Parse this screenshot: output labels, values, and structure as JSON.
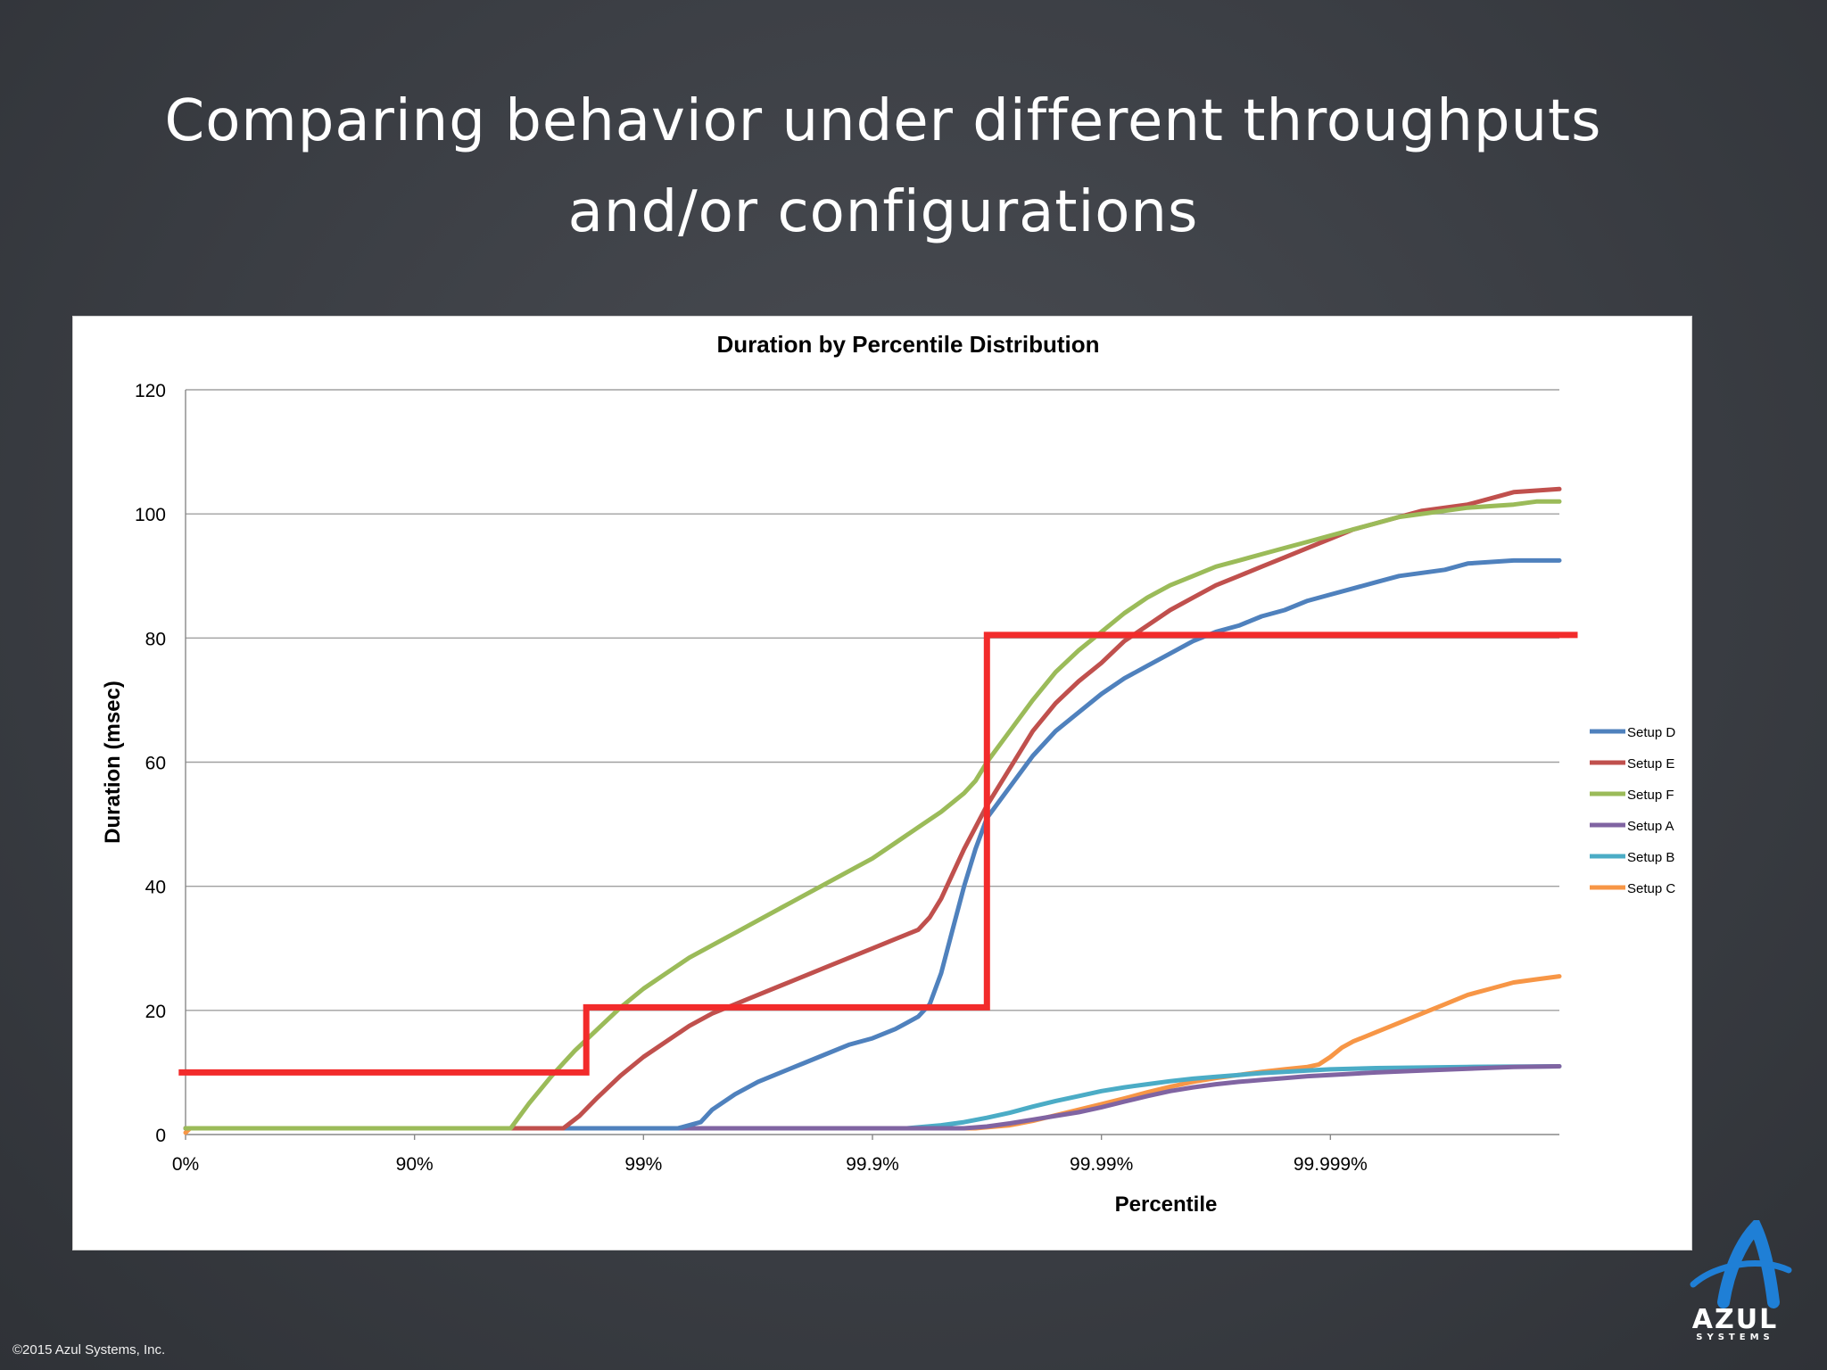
{
  "slide": {
    "title_line1": "Comparing behavior under different throughputs",
    "title_line2": "and/or configurations",
    "copyright": "©2015 Azul Systems, Inc.",
    "logo": {
      "name": "azul-systems-logo",
      "word": "AZUL",
      "sub": "SYSTEMS"
    }
  },
  "chart_data": {
    "type": "line",
    "title": "Duration by Percentile Distribution",
    "xlabel": "Percentile",
    "ylabel": "Duration (msec)",
    "x_scale": "log-percentile",
    "x_ticks": [
      "0%",
      "90%",
      "99%",
      "99.9%",
      "99.99%",
      "99.999%"
    ],
    "x_range_nines": [
      0,
      6
    ],
    "y_ticks": [
      0,
      20,
      40,
      60,
      80,
      100,
      120
    ],
    "ylim": [
      0,
      120
    ],
    "grid": "horizontal",
    "legend": "right",
    "series": [
      {
        "name": "Setup D",
        "color": "#4f81bd",
        "points": [
          [
            0,
            1
          ],
          [
            2.15,
            1
          ],
          [
            2.25,
            2
          ],
          [
            2.3,
            4
          ],
          [
            2.4,
            6.5
          ],
          [
            2.5,
            8.5
          ],
          [
            2.6,
            10
          ],
          [
            2.7,
            11.5
          ],
          [
            2.8,
            13
          ],
          [
            2.9,
            14.5
          ],
          [
            3,
            15.5
          ],
          [
            3.1,
            17
          ],
          [
            3.15,
            18
          ],
          [
            3.2,
            19
          ],
          [
            3.25,
            21
          ],
          [
            3.3,
            26
          ],
          [
            3.35,
            33
          ],
          [
            3.4,
            40
          ],
          [
            3.45,
            46
          ],
          [
            3.5,
            51
          ],
          [
            3.6,
            56
          ],
          [
            3.7,
            61
          ],
          [
            3.8,
            65
          ],
          [
            3.9,
            68
          ],
          [
            4,
            71
          ],
          [
            4.1,
            73.5
          ],
          [
            4.2,
            75.5
          ],
          [
            4.3,
            77.5
          ],
          [
            4.4,
            79.5
          ],
          [
            4.5,
            81
          ],
          [
            4.6,
            82
          ],
          [
            4.7,
            83.5
          ],
          [
            4.8,
            84.5
          ],
          [
            4.9,
            86
          ],
          [
            5,
            87
          ],
          [
            5.1,
            88
          ],
          [
            5.2,
            89
          ],
          [
            5.3,
            90
          ],
          [
            5.5,
            91
          ],
          [
            5.6,
            92
          ],
          [
            5.8,
            92.5
          ],
          [
            6,
            92.5
          ]
        ]
      },
      {
        "name": "Setup E",
        "color": "#c0504d",
        "points": [
          [
            0,
            1
          ],
          [
            1.65,
            1
          ],
          [
            1.72,
            3
          ],
          [
            1.8,
            6
          ],
          [
            1.9,
            9.5
          ],
          [
            2,
            12.5
          ],
          [
            2.1,
            15
          ],
          [
            2.2,
            17.5
          ],
          [
            2.3,
            19.5
          ],
          [
            2.4,
            21
          ],
          [
            2.5,
            22.5
          ],
          [
            2.6,
            24
          ],
          [
            2.7,
            25.5
          ],
          [
            2.8,
            27
          ],
          [
            2.9,
            28.5
          ],
          [
            3,
            30
          ],
          [
            3.1,
            31.5
          ],
          [
            3.2,
            33
          ],
          [
            3.25,
            35
          ],
          [
            3.3,
            38
          ],
          [
            3.35,
            42
          ],
          [
            3.4,
            46
          ],
          [
            3.5,
            53
          ],
          [
            3.6,
            59
          ],
          [
            3.7,
            65
          ],
          [
            3.8,
            69.5
          ],
          [
            3.9,
            73
          ],
          [
            4,
            76
          ],
          [
            4.1,
            79.5
          ],
          [
            4.2,
            82
          ],
          [
            4.3,
            84.5
          ],
          [
            4.4,
            86.5
          ],
          [
            4.5,
            88.5
          ],
          [
            4.6,
            90
          ],
          [
            4.7,
            91.5
          ],
          [
            4.8,
            93
          ],
          [
            4.9,
            94.5
          ],
          [
            5,
            96
          ],
          [
            5.1,
            97.5
          ],
          [
            5.2,
            98.5
          ],
          [
            5.3,
            99.5
          ],
          [
            5.4,
            100.5
          ],
          [
            5.6,
            101.5
          ],
          [
            5.7,
            102.5
          ],
          [
            5.8,
            103.5
          ],
          [
            6,
            104
          ]
        ]
      },
      {
        "name": "Setup F",
        "color": "#9bbb59",
        "points": [
          [
            0,
            1
          ],
          [
            1.42,
            1
          ],
          [
            1.5,
            5
          ],
          [
            1.6,
            9.5
          ],
          [
            1.7,
            13.5
          ],
          [
            1.8,
            17
          ],
          [
            1.9,
            20.5
          ],
          [
            2,
            23.5
          ],
          [
            2.1,
            26
          ],
          [
            2.2,
            28.5
          ],
          [
            2.3,
            30.5
          ],
          [
            2.4,
            32.5
          ],
          [
            2.5,
            34.5
          ],
          [
            2.6,
            36.5
          ],
          [
            2.7,
            38.5
          ],
          [
            2.8,
            40.5
          ],
          [
            2.9,
            42.5
          ],
          [
            3,
            44.5
          ],
          [
            3.1,
            47
          ],
          [
            3.2,
            49.5
          ],
          [
            3.3,
            52
          ],
          [
            3.4,
            55
          ],
          [
            3.45,
            57
          ],
          [
            3.5,
            60
          ],
          [
            3.6,
            65
          ],
          [
            3.7,
            70
          ],
          [
            3.8,
            74.5
          ],
          [
            3.9,
            78
          ],
          [
            4,
            81
          ],
          [
            4.1,
            84
          ],
          [
            4.2,
            86.5
          ],
          [
            4.3,
            88.5
          ],
          [
            4.4,
            90
          ],
          [
            4.5,
            91.5
          ],
          [
            4.6,
            92.5
          ],
          [
            4.7,
            93.5
          ],
          [
            4.8,
            94.5
          ],
          [
            4.9,
            95.5
          ],
          [
            5,
            96.5
          ],
          [
            5.1,
            97.5
          ],
          [
            5.2,
            98.5
          ],
          [
            5.3,
            99.5
          ],
          [
            5.5,
            100.5
          ],
          [
            5.6,
            101
          ],
          [
            5.8,
            101.5
          ],
          [
            5.9,
            102
          ],
          [
            6,
            102
          ]
        ]
      },
      {
        "name": "Setup A",
        "color": "#8064a2",
        "points": [
          [
            0,
            1
          ],
          [
            3.4,
            1
          ],
          [
            3.5,
            1.3
          ],
          [
            3.6,
            1.8
          ],
          [
            3.7,
            2.4
          ],
          [
            3.8,
            3
          ],
          [
            3.9,
            3.6
          ],
          [
            4,
            4.4
          ],
          [
            4.1,
            5.3
          ],
          [
            4.2,
            6.2
          ],
          [
            4.3,
            7
          ],
          [
            4.4,
            7.6
          ],
          [
            4.5,
            8.1
          ],
          [
            4.6,
            8.5
          ],
          [
            4.7,
            8.8
          ],
          [
            4.8,
            9.1
          ],
          [
            4.9,
            9.4
          ],
          [
            5,
            9.6
          ],
          [
            5.2,
            10
          ],
          [
            5.4,
            10.3
          ],
          [
            5.6,
            10.6
          ],
          [
            5.8,
            10.9
          ],
          [
            6,
            11
          ]
        ]
      },
      {
        "name": "Setup B",
        "color": "#4bacc6",
        "points": [
          [
            0,
            1
          ],
          [
            3.15,
            1
          ],
          [
            3.3,
            1.5
          ],
          [
            3.4,
            2
          ],
          [
            3.5,
            2.7
          ],
          [
            3.6,
            3.5
          ],
          [
            3.7,
            4.5
          ],
          [
            3.8,
            5.4
          ],
          [
            3.9,
            6.2
          ],
          [
            4,
            7
          ],
          [
            4.1,
            7.6
          ],
          [
            4.2,
            8.1
          ],
          [
            4.3,
            8.6
          ],
          [
            4.4,
            9
          ],
          [
            4.5,
            9.3
          ],
          [
            4.6,
            9.6
          ],
          [
            4.7,
            9.9
          ],
          [
            4.8,
            10.1
          ],
          [
            4.9,
            10.3
          ],
          [
            5,
            10.5
          ],
          [
            5.2,
            10.7
          ],
          [
            5.4,
            10.8
          ],
          [
            5.6,
            10.9
          ],
          [
            6,
            11
          ]
        ]
      },
      {
        "name": "Setup C",
        "color": "#f79646",
        "points": [
          [
            0,
            0.3
          ],
          [
            0.02,
            1
          ],
          [
            3.45,
            1
          ],
          [
            3.6,
            1.5
          ],
          [
            3.7,
            2.2
          ],
          [
            3.8,
            3.1
          ],
          [
            3.9,
            4
          ],
          [
            4,
            4.9
          ],
          [
            4.1,
            5.8
          ],
          [
            4.2,
            6.8
          ],
          [
            4.3,
            7.7
          ],
          [
            4.4,
            8.5
          ],
          [
            4.5,
            9.1
          ],
          [
            4.6,
            9.6
          ],
          [
            4.7,
            10.1
          ],
          [
            4.8,
            10.5
          ],
          [
            4.9,
            10.9
          ],
          [
            4.95,
            11.3
          ],
          [
            5,
            12.5
          ],
          [
            5.05,
            14
          ],
          [
            5.1,
            15
          ],
          [
            5.2,
            16.5
          ],
          [
            5.3,
            18
          ],
          [
            5.4,
            19.5
          ],
          [
            5.5,
            21
          ],
          [
            5.6,
            22.5
          ],
          [
            5.7,
            23.5
          ],
          [
            5.8,
            24.5
          ],
          [
            5.9,
            25
          ],
          [
            6,
            25.5
          ]
        ]
      }
    ],
    "sla_overlay": {
      "color": "#f22b2b",
      "points": [
        [
          -0.03,
          10
        ],
        [
          1.75,
          10
        ],
        [
          1.75,
          20.5
        ],
        [
          3.5,
          20.5
        ],
        [
          3.5,
          80.5
        ],
        [
          6.08,
          80.5
        ]
      ]
    }
  }
}
